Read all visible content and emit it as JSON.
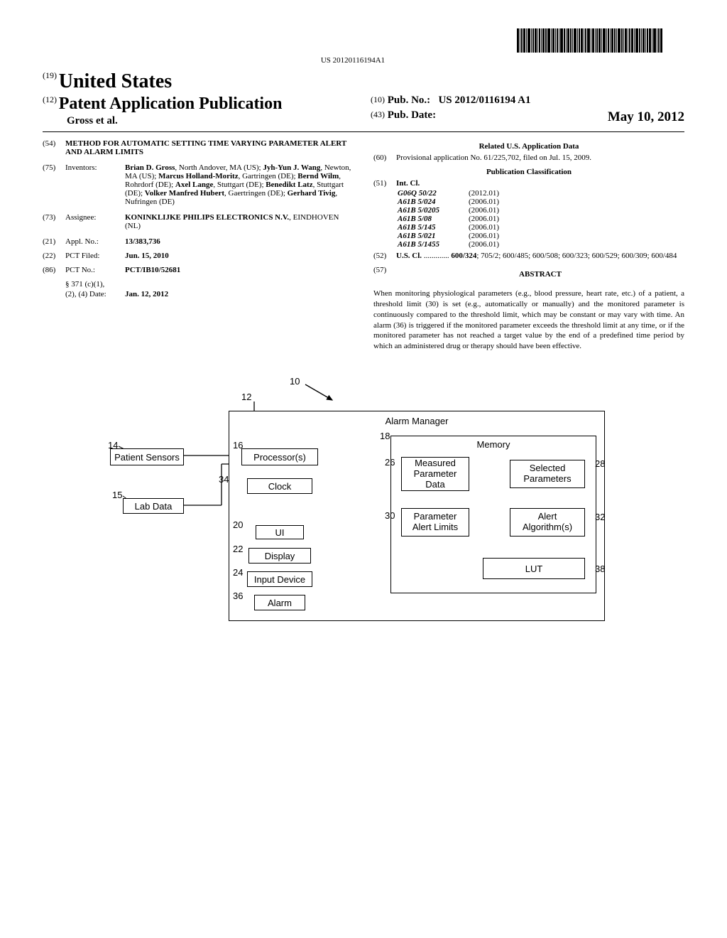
{
  "barcode_text": "US 20120116194A1",
  "header": {
    "prefix19": "(19)",
    "us": "United States",
    "prefix12": "(12)",
    "pubtype": "Patent Application Publication",
    "authors": "Gross et al.",
    "prefix10": "(10)",
    "pubno_label": "Pub. No.:",
    "pubno": "US 2012/0116194 A1",
    "prefix43": "(43)",
    "pubdate_label": "Pub. Date:",
    "pubdate": "May 10, 2012"
  },
  "left": {
    "title_code": "(54)",
    "title": "METHOD FOR AUTOMATIC SETTING TIME VARYING PARAMETER ALERT AND ALARM LIMITS",
    "inventors_code": "(75)",
    "inventors_label": "Inventors:",
    "inventors_html": "Brian D. Gross|, North Andover, MA (US); |Jyh-Yun J. Wang|, Newton, MA (US); |Marcus Holland-Moritz|, Gartringen (DE); |Bernd Wilm|, Rohrdorf (DE); |Axel Lange|, Stuttgart (DE); |Benedikt Latz|, Stuttgart (DE); |Volker Manfred Hubert|, Gaertringen (DE); |Gerhard Tivig|, Nufringen (DE)",
    "assignee_code": "(73)",
    "assignee_label": "Assignee:",
    "assignee_name": "KONINKLIJKE PHILIPS ELECTRONICS N.V.",
    "assignee_loc": ", EINDHOVEN (NL)",
    "applno_code": "(21)",
    "applno_label": "Appl. No.:",
    "applno": "13/383,736",
    "pctfiled_code": "(22)",
    "pctfiled_label": "PCT Filed:",
    "pctfiled": "Jun. 15, 2010",
    "pctno_code": "(86)",
    "pctno_label": "PCT No.:",
    "pctno": "PCT/IB10/52681",
    "section371a": "§ 371 (c)(1),",
    "section371b": "(2), (4) Date:",
    "section371_date": "Jan. 12, 2012"
  },
  "right": {
    "related_heading": "Related U.S. Application Data",
    "prov_code": "(60)",
    "prov_text": "Provisional application No. 61/225,702, filed on Jul. 15, 2009.",
    "pubclass_heading": "Publication Classification",
    "intcl_code": "(51)",
    "intcl_label": "Int. Cl.",
    "ipc": [
      {
        "code": "G06Q 50/22",
        "year": "(2012.01)"
      },
      {
        "code": "A61B 5/024",
        "year": "(2006.01)"
      },
      {
        "code": "A61B 5/0205",
        "year": "(2006.01)"
      },
      {
        "code": "A61B 5/08",
        "year": "(2006.01)"
      },
      {
        "code": "A61B 5/145",
        "year": "(2006.01)"
      },
      {
        "code": "A61B 5/021",
        "year": "(2006.01)"
      },
      {
        "code": "A61B 5/1455",
        "year": "(2006.01)"
      }
    ],
    "uscl_code": "(52)",
    "uscl_label": "U.S. Cl.",
    "uscl_text": " ............. 600/324; 705/2; 600/485; 600/508; 600/323; 600/529; 600/309; 600/484",
    "abstract_code": "(57)",
    "abstract_label": "ABSTRACT",
    "abstract_text": "When monitoring physiological parameters (e.g., blood pressure, heart rate, etc.) of a patient, a threshold limit (30) is set (e.g., automatically or manually) and the monitored parameter is continuously compared to the threshold limit, which may be constant or may vary with time. An alarm (36) is triggered if the monitored parameter exceeds the threshold limit at any time, or if the monitored parameter has not reached a target value by the end of a predefined time period by which an administered drug or therapy should have been effective."
  },
  "diagram": {
    "leader_10": "10",
    "leader_12": "12",
    "labels": {
      "14": "14",
      "15": "15",
      "16": "16",
      "18": "18",
      "20": "20",
      "22": "22",
      "24": "24",
      "26": "26",
      "28": "28",
      "30": "30",
      "32": "32",
      "34": "34",
      "36": "36",
      "38": "38"
    },
    "boxes": {
      "patient_sensors": "Patient Sensors",
      "lab_data": "Lab Data",
      "alarm_manager": "Alarm Manager",
      "processors": "Processor(s)",
      "clock": "Clock",
      "ui": "UI",
      "display": "Display",
      "input_device": "Input Device",
      "alarm": "Alarm",
      "memory": "Memory",
      "measured_param": "Measured Parameter Data",
      "selected_params": "Selected Parameters",
      "param_limits": "Parameter Alert Limits",
      "alert_algo": "Alert Algorithm(s)",
      "lut": "LUT"
    }
  }
}
